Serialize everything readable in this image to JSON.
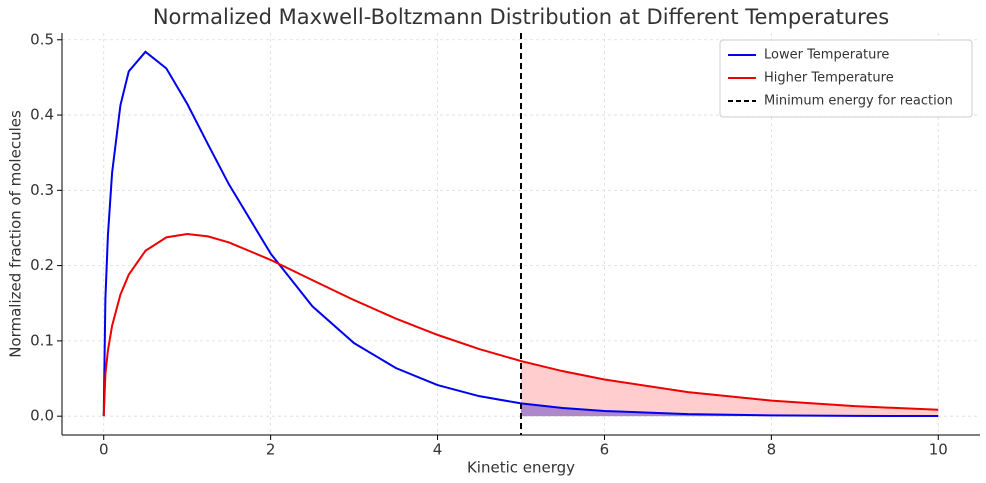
{
  "chart_data": {
    "type": "line",
    "title": "Normalized Maxwell-Boltzmann Distribution at Different Temperatures",
    "x_label": "Kinetic energy",
    "y_label": "Normalized fraction of molecules",
    "x": [
      0,
      0.02,
      0.05,
      0.1,
      0.2,
      0.3,
      0.5,
      0.75,
      1,
      1.25,
      1.5,
      2,
      2.5,
      3,
      3.5,
      4,
      4.5,
      5,
      5.5,
      6,
      7,
      8,
      9,
      10
    ],
    "series": [
      {
        "name": "Lower Temperature",
        "color": "#0000ee",
        "fill": "#9370c8",
        "values": [
          0,
          0.156,
          0.24,
          0.323,
          0.413,
          0.458,
          0.484,
          0.462,
          0.415,
          0.361,
          0.308,
          0.216,
          0.146,
          0.097,
          0.064,
          0.0413,
          0.0266,
          0.017,
          0.0108,
          0.0069,
          0.0027,
          0.0011,
          0.0004,
          0.0002
        ]
      },
      {
        "name": "Higher Temperature",
        "color": "#ee0000",
        "fill": "#ffc8c8",
        "values": [
          0,
          0.0559,
          0.087,
          0.12,
          0.1615,
          0.188,
          0.2197,
          0.2375,
          0.242,
          0.2388,
          0.2308,
          0.2076,
          0.1807,
          0.1542,
          0.1297,
          0.108,
          0.0892,
          0.0732,
          0.0598,
          0.0487,
          0.0319,
          0.0207,
          0.0133,
          0.0085
        ]
      }
    ],
    "threshold": {
      "name": "Minimum energy for reaction",
      "value": 5,
      "color": "#000000"
    },
    "xlim": [
      -0.5,
      10.5
    ],
    "xticks": [
      0,
      2,
      4,
      6,
      8,
      10
    ],
    "ylim": [
      -0.025,
      0.509
    ],
    "yticks": [
      {
        "value": 0,
        "label": "0.0"
      },
      0.1,
      0.2,
      0.3,
      0.4,
      0.5
    ],
    "grid": true,
    "legend": "upper right"
  }
}
